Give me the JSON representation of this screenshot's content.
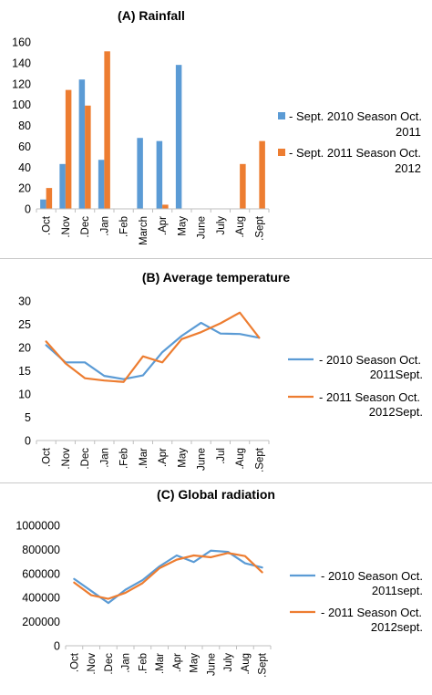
{
  "chart_data": [
    {
      "type": "bar",
      "title": "(A) Rainfall",
      "xlabel": "",
      "ylabel": "",
      "ylim": [
        0,
        160
      ],
      "yticks": [
        0,
        20,
        40,
        60,
        80,
        100,
        120,
        140,
        160
      ],
      "grid": false,
      "legend_position": "right",
      "categories": [
        ".Oct",
        ".Nov",
        ".Dec",
        ".Jan",
        ".Feb",
        "March",
        ".Apr",
        "May",
        "June",
        "July",
        ".Aug",
        ".Sept"
      ],
      "series": [
        {
          "name": "- Sept. 2010 Season Oct. 2011",
          "legend_lines": [
            "- Sept. 2010 Season Oct.",
            "2011"
          ],
          "color": "#5b9bd5",
          "values": [
            9,
            43,
            124,
            47,
            0,
            68,
            65,
            138,
            0,
            0,
            0,
            0
          ]
        },
        {
          "name": "- Sept. 2011 Season Oct. 2012",
          "legend_lines": [
            "- Sept. 2011 Season Oct.",
            "2012"
          ],
          "color": "#ed7d31",
          "values": [
            20,
            114,
            99,
            151,
            0,
            0,
            4,
            0,
            0,
            0,
            43,
            65
          ]
        }
      ]
    },
    {
      "type": "line",
      "title": "(B) Average temperature",
      "xlabel": "",
      "ylabel": "",
      "ylim": [
        0,
        30
      ],
      "yticks": [
        0,
        5,
        10,
        15,
        20,
        25,
        30
      ],
      "grid": false,
      "legend_position": "right",
      "categories": [
        ".Oct",
        ".Nov",
        ".Dec",
        ".Jan",
        ".Feb",
        ".Mar",
        ".Apr",
        "May",
        "June",
        ".Jul",
        ".Aug",
        ".Sept"
      ],
      "series": [
        {
          "name": "- 2010 Season Oct. 2011Sept.",
          "legend_lines": [
            "- 2010 Season Oct.",
            "2011Sept."
          ],
          "color": "#5b9bd5",
          "values": [
            20.5,
            16.8,
            16.8,
            13.9,
            13.2,
            14.0,
            19.0,
            22.5,
            25.3,
            23.0,
            22.9,
            22.1
          ]
        },
        {
          "name": "- 2011 Season Oct. 2012Sept.",
          "legend_lines": [
            "- 2011 Season Oct.",
            "2012Sept."
          ],
          "color": "#ed7d31",
          "values": [
            21.3,
            16.6,
            13.4,
            12.9,
            12.6,
            18.1,
            16.8,
            21.8,
            23.3,
            25.2,
            27.5,
            22.1
          ]
        }
      ]
    },
    {
      "type": "line",
      "title": "(C) Global radiation",
      "xlabel": "",
      "ylabel": "",
      "ylim": [
        0,
        1000000
      ],
      "yticks": [
        0,
        200000,
        400000,
        600000,
        800000,
        1000000
      ],
      "grid": false,
      "legend_position": "right",
      "categories": [
        ".Oct",
        ".Nov",
        ".Dec",
        ".Jan",
        ".Feb",
        ".Mar",
        ".Apr",
        "May",
        "June",
        "July",
        ".Aug",
        ".Sept"
      ],
      "series": [
        {
          "name": "- 2010 Season Oct. 2011sept.",
          "legend_lines": [
            "- 2010 Season Oct.",
            "2011sept."
          ],
          "color": "#5b9bd5",
          "values": [
            555000,
            455000,
            355000,
            465000,
            545000,
            660000,
            750000,
            695000,
            790000,
            780000,
            685000,
            650000
          ]
        },
        {
          "name": "- 2011 Season Oct. 2012sept.",
          "legend_lines": [
            "- 2011 Season Oct.",
            "2012sept."
          ],
          "color": "#ed7d31",
          "values": [
            525000,
            420000,
            390000,
            440000,
            520000,
            645000,
            715000,
            750000,
            735000,
            770000,
            745000,
            610000
          ]
        }
      ]
    }
  ]
}
